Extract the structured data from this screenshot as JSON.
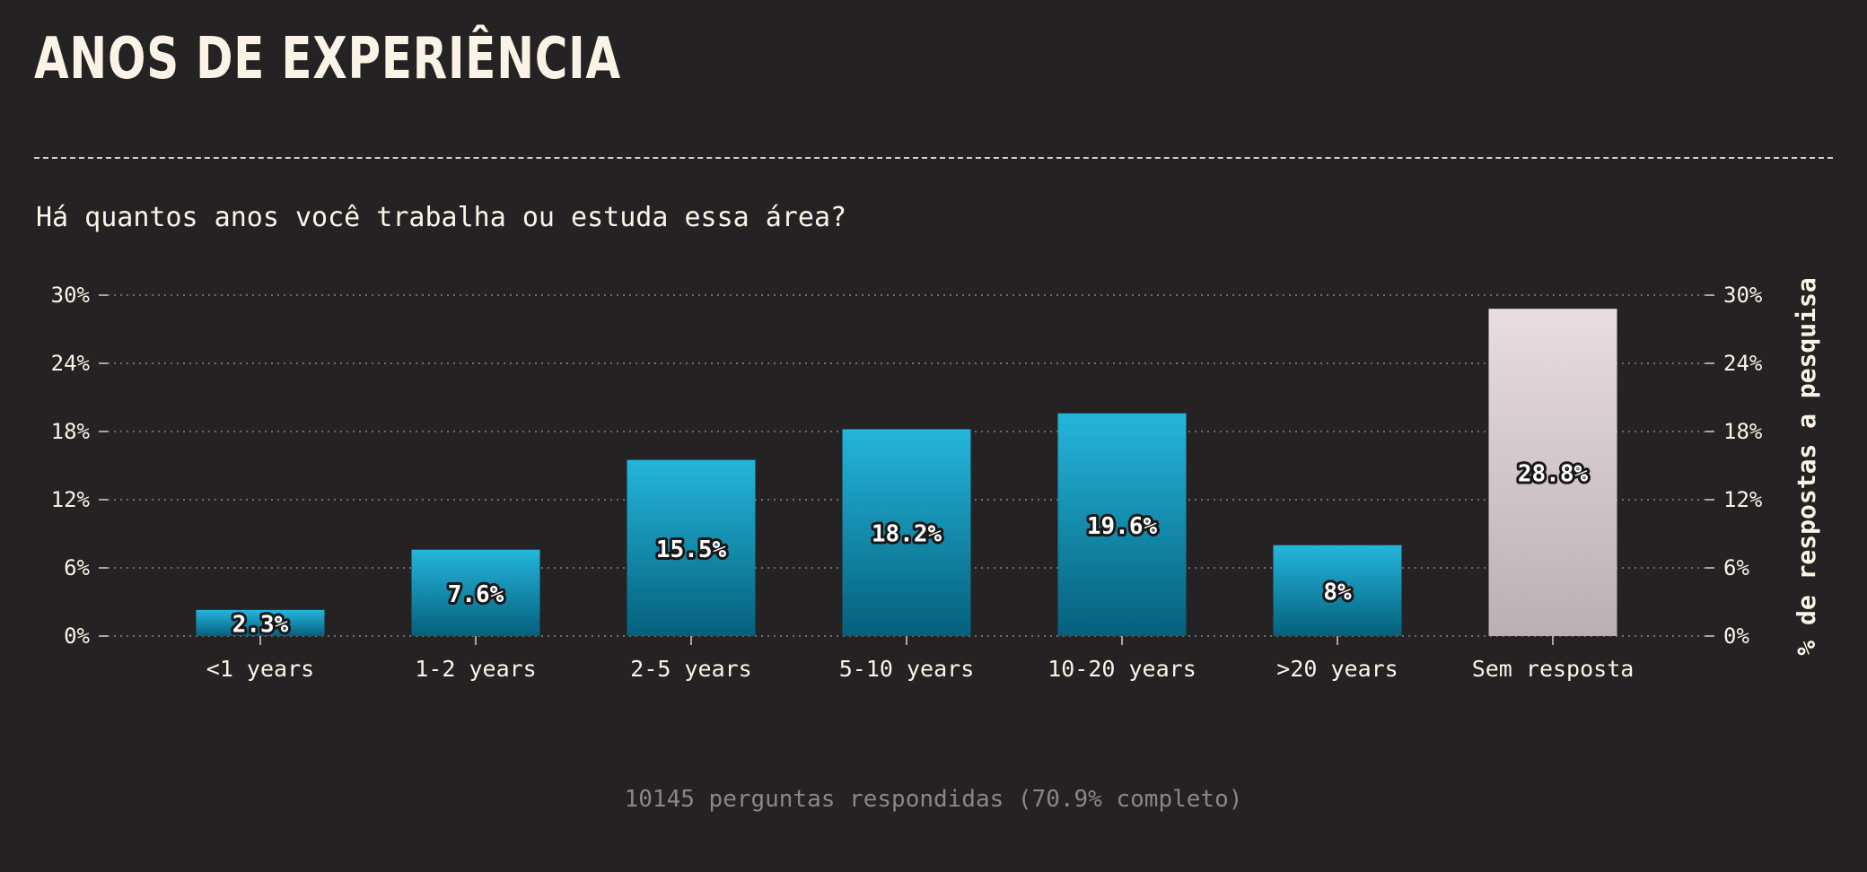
{
  "title": "ANOS DE EXPERIÊNCIA",
  "subtitle": "Há quantos anos você trabalha ou estuda essa área?",
  "footer": "10145 perguntas respondidas (70.9% completo)",
  "colors": {
    "background": "#252223",
    "bar_top": "#24b6dc",
    "bar_bottom": "#05607c",
    "no_answer_top": "#e8dde1",
    "no_answer_bottom": "#b9b1b4",
    "text": "#fbf4e6"
  },
  "chart_data": {
    "type": "bar",
    "categories": [
      "<1 years",
      "1-2 years",
      "2-5 years",
      "5-10 years",
      "10-20 years",
      ">20 years",
      "Sem resposta"
    ],
    "values": [
      2.3,
      7.6,
      15.5,
      18.2,
      19.6,
      8,
      28.8
    ],
    "value_labels": [
      "2.3%",
      "7.6%",
      "15.5%",
      "18.2%",
      "19.6%",
      "8%",
      "28.8%"
    ],
    "highlight": [
      false,
      false,
      false,
      false,
      false,
      false,
      true
    ],
    "ylabel": "% de respostas a pesquisa",
    "ylim": [
      0,
      30
    ],
    "yticks": [
      0,
      6,
      12,
      18,
      24,
      30
    ],
    "ytick_labels": [
      "0%",
      "6%",
      "12%",
      "18%",
      "24%",
      "30%"
    ],
    "grid": true,
    "dual_y_axis": true
  }
}
